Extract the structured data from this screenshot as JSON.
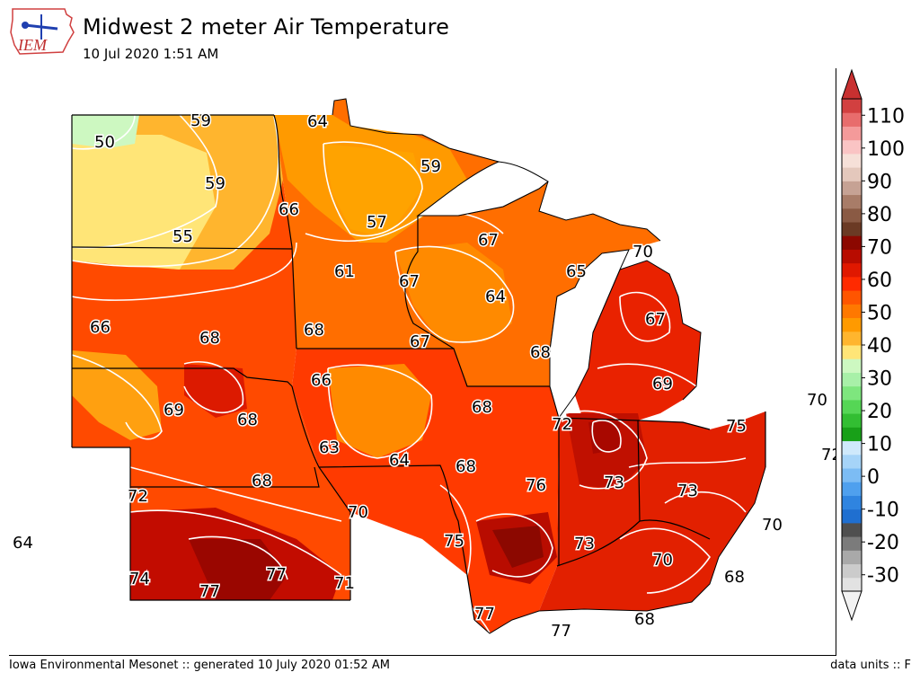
{
  "header": {
    "logo_text": "IEM",
    "title": "Midwest 2 meter Air Temperature",
    "subtitle": "10 Jul 2020 1:51 AM"
  },
  "footer": {
    "left": "Iowa Environmental Mesonet :: generated 10 July 2020 01:52 AM",
    "right": "data units :: F"
  },
  "colorbar": {
    "labels": [
      "110",
      "100",
      "90",
      "80",
      "70",
      "60",
      "50",
      "40",
      "30",
      "20",
      "10",
      "0",
      "-10",
      "-20",
      "-30"
    ],
    "colors": [
      "#e2e2e2",
      "#cbcbcb",
      "#a9a9a9",
      "#7b7b7b",
      "#4f4f4f",
      "#1f6fd0",
      "#2f84e0",
      "#4fa0ee",
      "#7cbcf4",
      "#a6d4f8",
      "#cfe9fb",
      "#18a018",
      "#32be32",
      "#55d655",
      "#7ee67e",
      "#a8f0a8",
      "#cdf8c1",
      "#ffe577",
      "#ffb52e",
      "#ff9a00",
      "#ff7800",
      "#ff5500",
      "#ff2a00",
      "#e01800",
      "#b80c00",
      "#8c0800",
      "#6b3a24",
      "#8a5a44",
      "#a87c68",
      "#c6a294",
      "#e4c8bc",
      "#f6e0d8",
      "#fac4c4",
      "#f49a9a",
      "#e86c6c",
      "#d24040"
    ],
    "top_color": "#c83030",
    "bottom_color": "#f2f2f2"
  },
  "map": {
    "station_labels": [
      {
        "text": "59"
      },
      {
        "text": "64"
      },
      {
        "text": "50"
      },
      {
        "text": "59"
      },
      {
        "text": "59"
      },
      {
        "text": "66"
      },
      {
        "text": "57"
      },
      {
        "text": "55"
      },
      {
        "text": "67"
      },
      {
        "text": "70"
      },
      {
        "text": "61"
      },
      {
        "text": "65"
      },
      {
        "text": "67"
      },
      {
        "text": "64"
      },
      {
        "text": "66"
      },
      {
        "text": "67"
      },
      {
        "text": "68"
      },
      {
        "text": "68"
      },
      {
        "text": "67"
      },
      {
        "text": "68"
      },
      {
        "text": "66"
      },
      {
        "text": "69"
      },
      {
        "text": "69"
      },
      {
        "text": "68"
      },
      {
        "text": "68"
      },
      {
        "text": "72"
      },
      {
        "text": "75"
      },
      {
        "text": "63"
      },
      {
        "text": "64"
      },
      {
        "text": "68"
      },
      {
        "text": "76"
      },
      {
        "text": "73"
      },
      {
        "text": "73"
      },
      {
        "text": "72"
      },
      {
        "text": "68"
      },
      {
        "text": "70"
      },
      {
        "text": "75"
      },
      {
        "text": "73"
      },
      {
        "text": "70"
      },
      {
        "text": "74"
      },
      {
        "text": "77"
      },
      {
        "text": "77"
      },
      {
        "text": "71"
      },
      {
        "text": "77"
      },
      {
        "text": "68"
      },
      {
        "text": "68"
      }
    ],
    "outside_labels": [
      {
        "text": "70"
      },
      {
        "text": "72"
      },
      {
        "text": "70"
      },
      {
        "text": "64"
      },
      {
        "text": "77"
      }
    ]
  }
}
